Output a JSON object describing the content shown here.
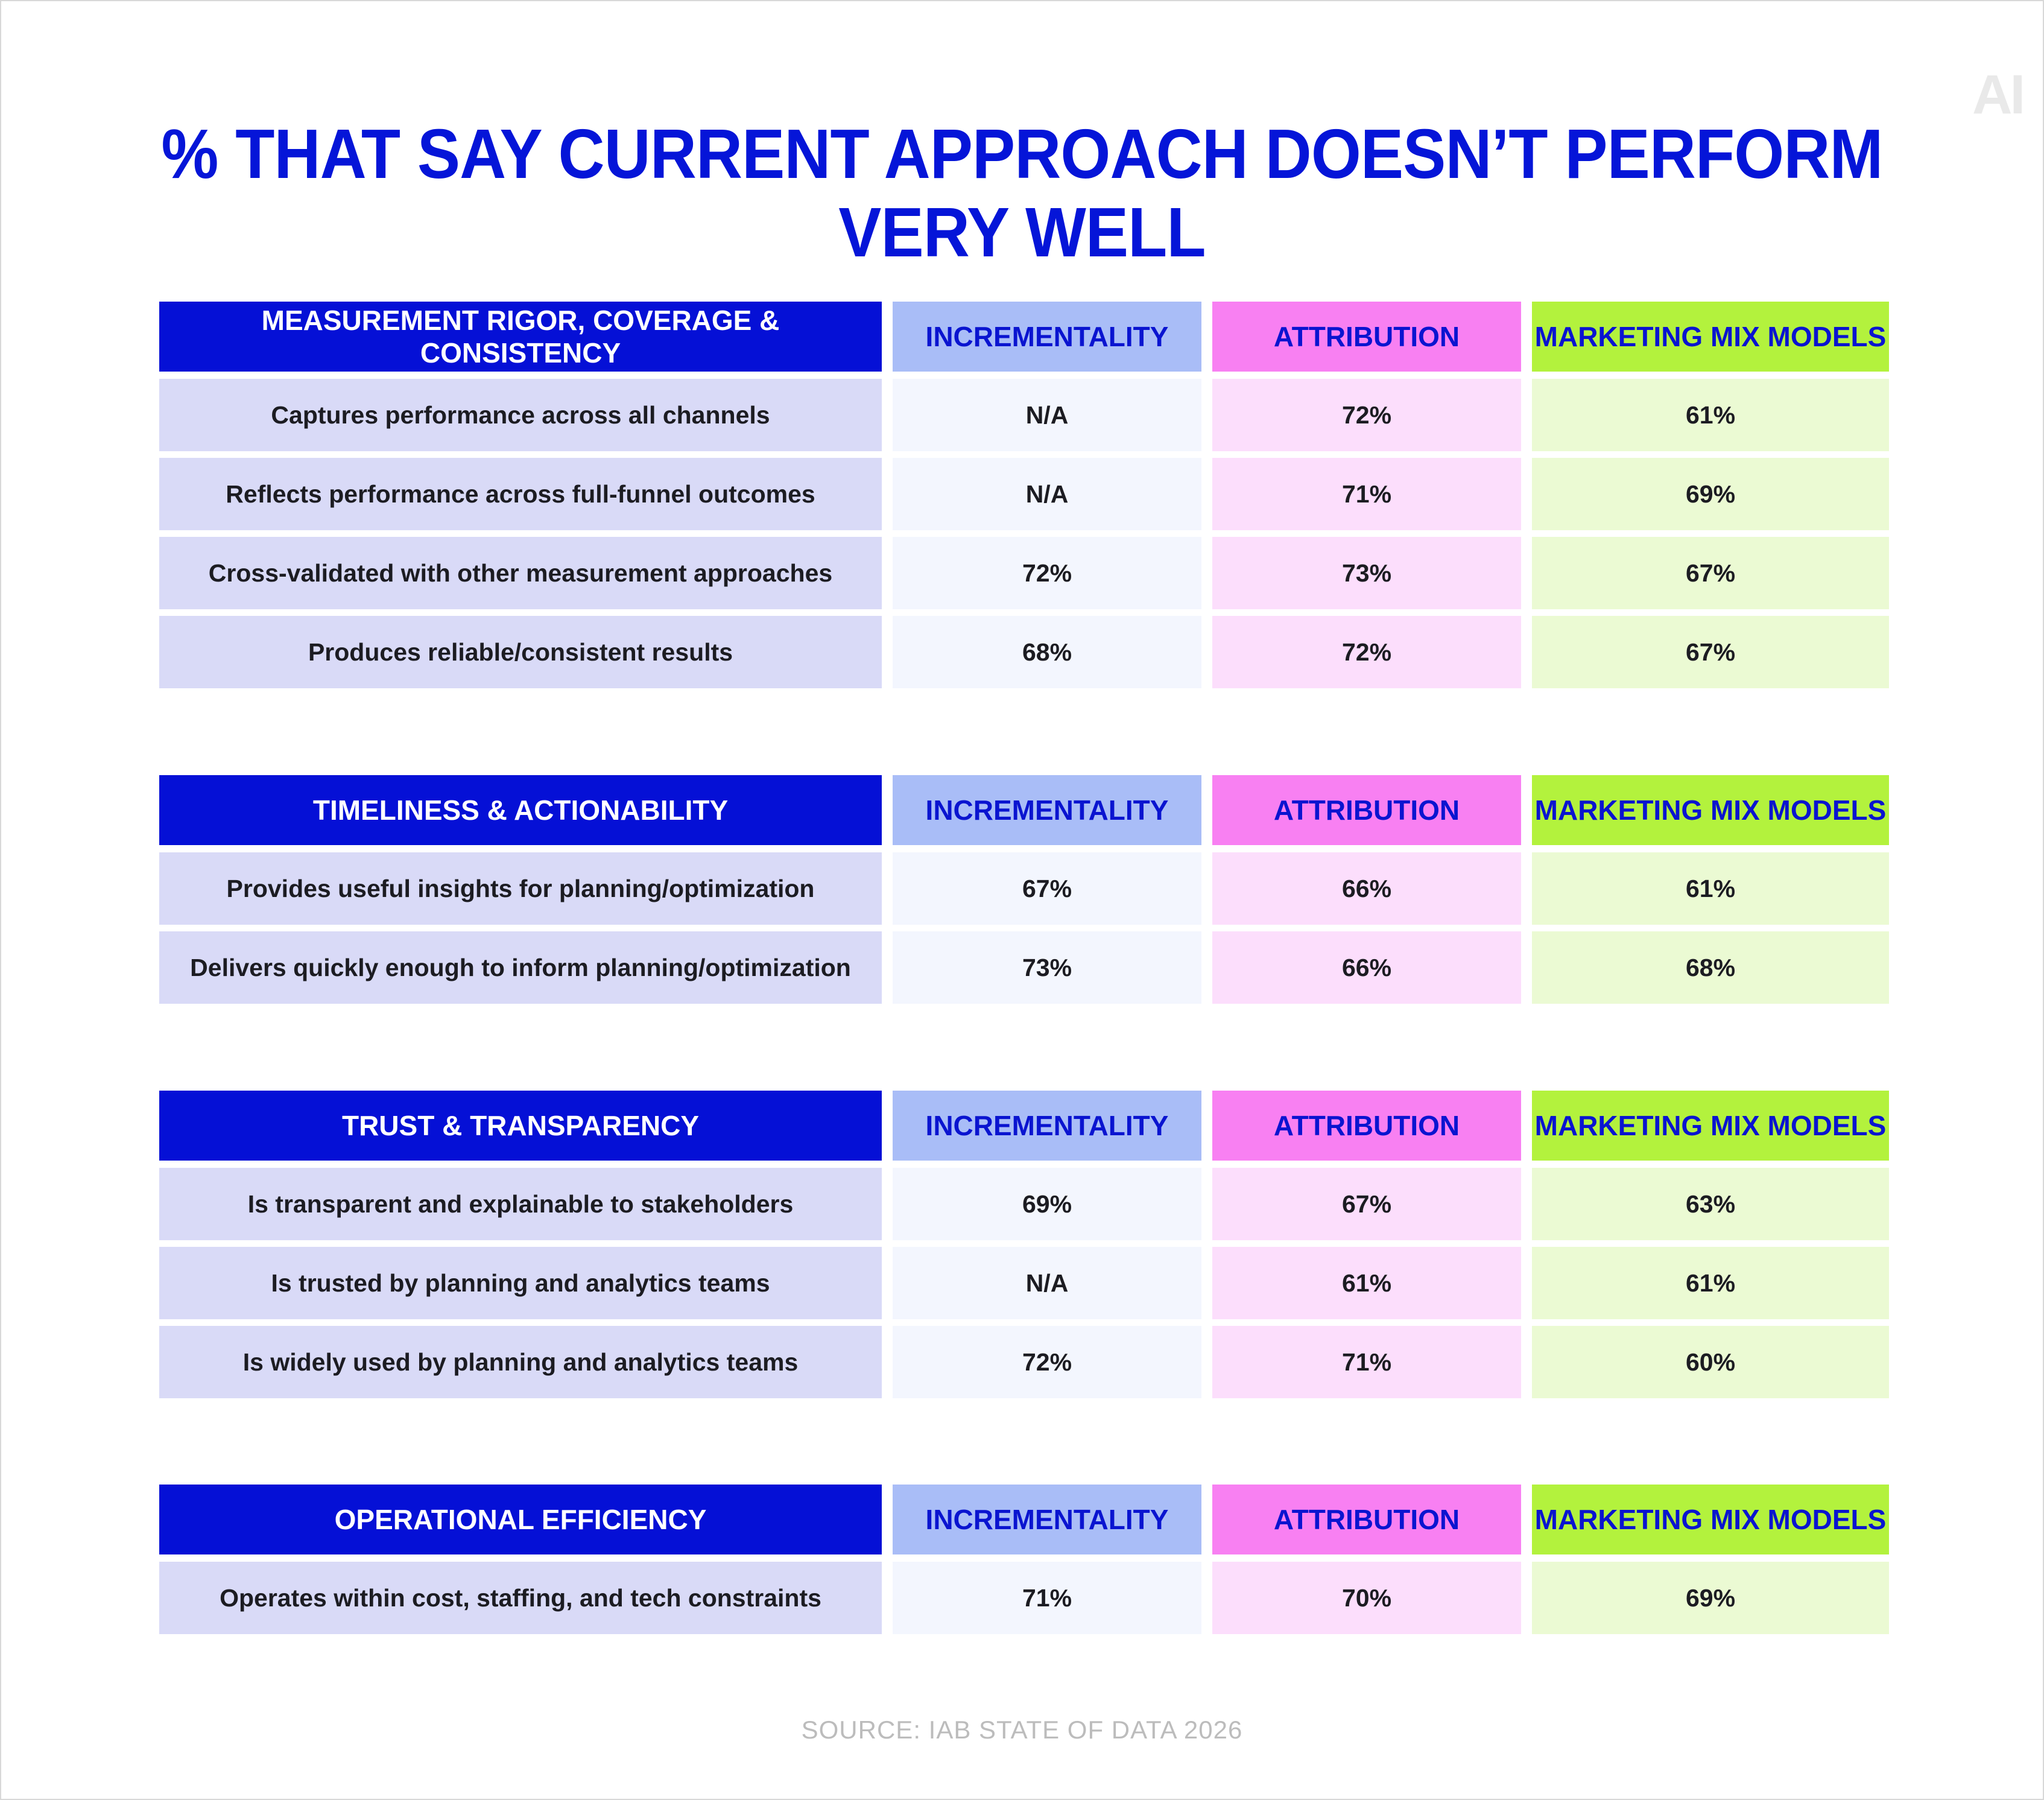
{
  "title": "% THAT SAY CURRENT APPROACH DOESN’T PERFORM VERY WELL",
  "logo": "AI",
  "source": "SOURCE: IAB STATE OF DATA 2026",
  "colors": {
    "title": "#0515d8",
    "category_header": "#0510d6",
    "incrementality": "#a9bdf7",
    "attribution": "#f880f2",
    "marketing_mix_models": "#b3f23d"
  },
  "chart_data": {
    "type": "table",
    "columns": [
      "INCREMENTALITY",
      "ATTRIBUTION",
      "MARKETING MIX MODELS"
    ],
    "sections": [
      {
        "category": "MEASUREMENT RIGOR, COVERAGE & CONSISTENCY",
        "rows": [
          {
            "label": "Captures performance across all channels",
            "values": [
              "N/A",
              "72%",
              "61%"
            ]
          },
          {
            "label": "Reflects performance across full-funnel outcomes",
            "values": [
              "N/A",
              "71%",
              "69%"
            ]
          },
          {
            "label": "Cross-validated with other measurement approaches",
            "values": [
              "72%",
              "73%",
              "67%"
            ]
          },
          {
            "label": "Produces reliable/consistent results",
            "values": [
              "68%",
              "72%",
              "67%"
            ]
          }
        ]
      },
      {
        "category": "TIMELINESS & ACTIONABILITY",
        "rows": [
          {
            "label": "Provides useful insights for planning/optimization",
            "values": [
              "67%",
              "66%",
              "61%"
            ]
          },
          {
            "label": "Delivers quickly enough to inform planning/optimization",
            "values": [
              "73%",
              "66%",
              "68%"
            ]
          }
        ]
      },
      {
        "category": "TRUST & TRANSPARENCY",
        "rows": [
          {
            "label": "Is transparent and explainable to stakeholders",
            "values": [
              "69%",
              "67%",
              "63%"
            ]
          },
          {
            "label": "Is trusted by planning and analytics teams",
            "values": [
              "N/A",
              "61%",
              "61%"
            ]
          },
          {
            "label": "Is widely used by planning and analytics teams",
            "values": [
              "72%",
              "71%",
              "60%"
            ]
          }
        ]
      },
      {
        "category": "OPERATIONAL EFFICIENCY",
        "rows": [
          {
            "label": "Operates within cost, staffing, and tech constraints",
            "values": [
              "71%",
              "70%",
              "69%"
            ]
          }
        ]
      }
    ]
  }
}
